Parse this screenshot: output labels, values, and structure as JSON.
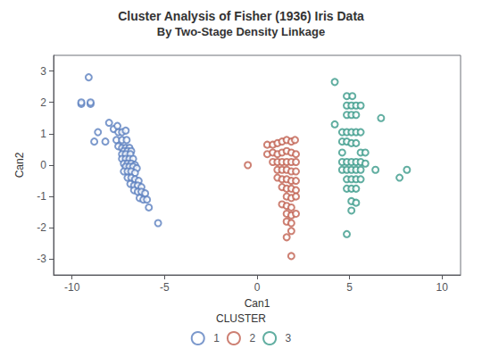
{
  "chart_data": {
    "type": "scatter",
    "title": "Cluster Analysis of Fisher (1936) Iris Data",
    "subtitle": "By Two-Stage Density Linkage",
    "xlabel": "Can1",
    "ylabel": "Can2",
    "xlim": [
      -11,
      11
    ],
    "ylim": [
      -3.5,
      3.5
    ],
    "xticks": [
      -10,
      -5,
      0,
      5,
      10
    ],
    "yticks": [
      -3,
      -2,
      -1,
      0,
      1,
      2,
      3
    ],
    "grid": false,
    "legend": "bottom",
    "legend_title": "CLUSTER",
    "marker": "circle",
    "series": [
      {
        "name": "1",
        "color": "#5B7FBF",
        "x": [
          -9.1,
          -9.5,
          -9.0,
          -9.5,
          -9.0,
          -8.6,
          -8.8,
          -8.2,
          -8.0,
          -7.75,
          -7.5,
          -7.55,
          -7.3,
          -7.1,
          -7.6,
          -7.3,
          -7.05,
          -7.5,
          -7.3,
          -7.1,
          -6.9,
          -7.2,
          -7.0,
          -6.8,
          -7.3,
          -7.1,
          -6.85,
          -7.3,
          -7.1,
          -6.9,
          -6.7,
          -7.2,
          -7.0,
          -6.8,
          -6.6,
          -7.1,
          -6.9,
          -6.7,
          -6.5,
          -7.2,
          -7.0,
          -6.8,
          -6.6,
          -7.0,
          -6.8,
          -6.6,
          -6.4,
          -6.85,
          -6.65,
          -6.45,
          -6.25,
          -6.65,
          -6.45,
          -6.25,
          -6.05,
          -6.35,
          -6.15,
          -5.95,
          -5.85,
          -5.35
        ],
        "values": [
          2.8,
          1.95,
          1.95,
          2.0,
          2.0,
          1.05,
          0.75,
          0.75,
          1.35,
          1.15,
          1.05,
          1.25,
          1.05,
          1.1,
          0.8,
          0.8,
          0.8,
          0.6,
          0.55,
          0.55,
          0.55,
          0.45,
          0.45,
          0.45,
          0.35,
          0.35,
          0.35,
          0.2,
          0.2,
          0.2,
          0.2,
          0.05,
          0.05,
          0.05,
          0.0,
          -0.05,
          -0.05,
          -0.05,
          -0.1,
          -0.2,
          -0.2,
          -0.2,
          -0.25,
          -0.4,
          -0.4,
          -0.45,
          -0.5,
          -0.6,
          -0.65,
          -0.65,
          -0.7,
          -0.8,
          -0.85,
          -0.85,
          -0.9,
          -1.05,
          -1.1,
          -1.1,
          -1.35,
          -1.85
        ]
      },
      {
        "name": "2",
        "color": "#C06050",
        "x": [
          -0.5,
          0.55,
          0.85,
          1.1,
          1.35,
          1.6,
          1.85,
          2.05,
          0.55,
          0.85,
          1.1,
          1.35,
          1.6,
          1.85,
          2.1,
          0.85,
          1.1,
          1.35,
          1.6,
          1.85,
          2.1,
          1.1,
          1.35,
          1.6,
          1.85,
          2.1,
          1.1,
          1.35,
          1.6,
          1.85,
          2.1,
          1.35,
          1.6,
          1.85,
          2.1,
          1.6,
          1.85,
          2.1,
          1.35,
          1.6,
          1.85,
          1.6,
          1.85,
          2.1,
          1.6,
          1.85,
          1.85,
          1.6,
          1.85
        ],
        "values": [
          0.0,
          0.65,
          0.65,
          0.7,
          0.75,
          0.8,
          0.75,
          0.8,
          0.35,
          0.4,
          0.35,
          0.4,
          0.45,
          0.4,
          0.35,
          0.1,
          0.1,
          0.1,
          0.1,
          0.1,
          0.1,
          -0.15,
          -0.15,
          -0.15,
          -0.2,
          -0.2,
          -0.4,
          -0.45,
          -0.45,
          -0.5,
          -0.5,
          -0.7,
          -0.75,
          -0.75,
          -0.8,
          -1.0,
          -1.05,
          -1.0,
          -1.25,
          -1.3,
          -1.35,
          -1.55,
          -1.6,
          -1.55,
          -1.8,
          -1.85,
          -2.1,
          -2.3,
          -2.9
        ]
      },
      {
        "name": "3",
        "color": "#3A9A8A",
        "x": [
          4.2,
          4.85,
          5.15,
          4.85,
          5.1,
          5.35,
          5.6,
          4.85,
          5.1,
          5.35,
          6.7,
          4.2,
          4.6,
          4.85,
          5.1,
          5.35,
          5.6,
          4.6,
          4.85,
          5.1,
          5.35,
          5.6,
          5.85,
          4.6,
          4.6,
          4.85,
          5.1,
          5.35,
          5.6,
          5.85,
          4.6,
          4.85,
          5.1,
          5.35,
          5.6,
          6.4,
          4.85,
          5.1,
          5.35,
          5.6,
          4.85,
          5.1,
          5.35,
          5.1,
          5.35,
          5.1,
          4.85,
          8.1,
          7.7
        ],
        "values": [
          2.65,
          2.2,
          2.2,
          1.9,
          1.9,
          1.9,
          1.9,
          1.6,
          1.6,
          1.6,
          1.5,
          1.3,
          1.05,
          1.05,
          1.05,
          1.05,
          1.05,
          0.75,
          0.75,
          0.7,
          0.7,
          0.4,
          0.4,
          0.4,
          0.1,
          0.1,
          0.1,
          0.1,
          0.1,
          0.05,
          -0.15,
          -0.15,
          -0.15,
          -0.15,
          -0.15,
          -0.15,
          -0.45,
          -0.45,
          -0.45,
          -0.45,
          -0.75,
          -0.75,
          -0.75,
          -1.15,
          -1.2,
          -1.45,
          -2.2,
          -0.15,
          -0.4
        ]
      }
    ]
  }
}
